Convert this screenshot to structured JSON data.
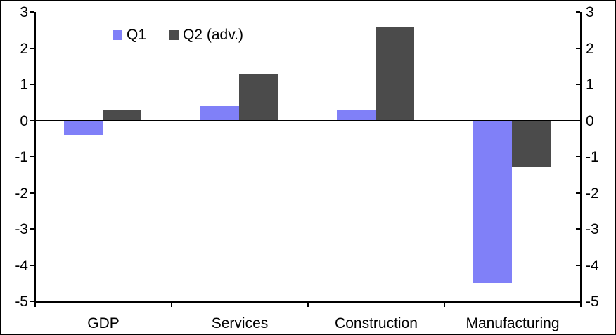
{
  "chart_data": {
    "type": "bar",
    "categories": [
      "GDP",
      "Services",
      "Construction",
      "Manufacturing"
    ],
    "series": [
      {
        "name": "Q1",
        "color": "#8080F8",
        "values": [
          -0.4,
          0.4,
          0.3,
          -4.5
        ]
      },
      {
        "name": "Q2 (adv.)",
        "color": "#4B4B4B",
        "values": [
          0.3,
          1.3,
          2.6,
          -1.3
        ]
      }
    ],
    "title": "",
    "xlabel": "",
    "ylabel": "",
    "ylim": [
      -5,
      3
    ],
    "yticks": [
      "3",
      "2",
      "1",
      "0",
      "-1",
      "-2",
      "-3",
      "-4",
      "-5"
    ],
    "dual_y_axis": true,
    "legend_position": "inside-top-left",
    "grid": false,
    "axis_color": "#000000",
    "background_color": "#FFFFFF"
  }
}
